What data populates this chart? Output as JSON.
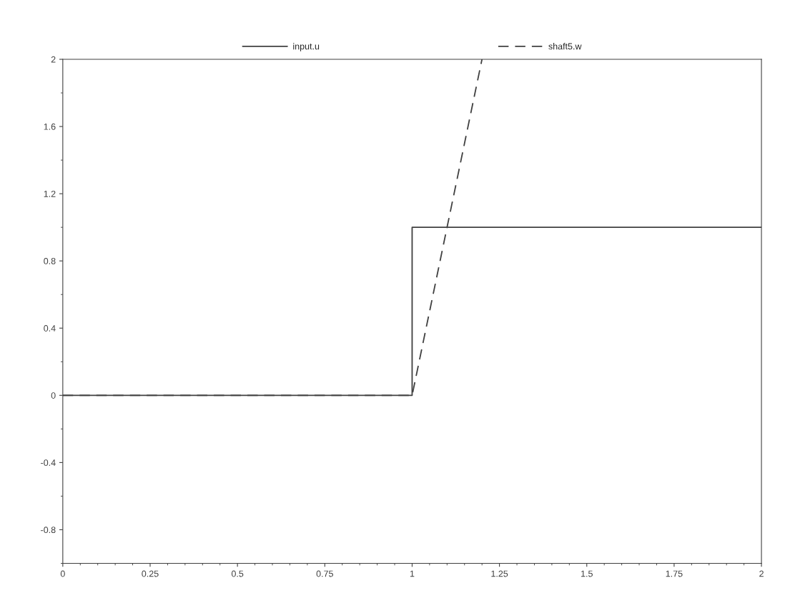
{
  "chart_data": {
    "type": "line",
    "series": [
      {
        "name": "input.u",
        "type": "step",
        "color": "#404040",
        "line_style": "solid",
        "x": [
          0,
          1,
          2
        ],
        "values": [
          0,
          1,
          1
        ]
      },
      {
        "name": "shaft5.w",
        "color": "#404040",
        "line_style": "dashed",
        "x": [
          0,
          1,
          1.2
        ],
        "values": [
          0,
          0,
          2
        ]
      }
    ],
    "xlim": [
      0,
      2
    ],
    "xticks": [
      0,
      0.25,
      0.5,
      0.75,
      1,
      1.25,
      1.5,
      1.75,
      2
    ],
    "ylim": [
      -1,
      2
    ],
    "yticks": [
      -0.8,
      -0.4,
      0,
      0.4,
      0.8,
      1.2,
      1.6,
      2
    ],
    "grid": false,
    "legend": "top",
    "marker": "none"
  }
}
